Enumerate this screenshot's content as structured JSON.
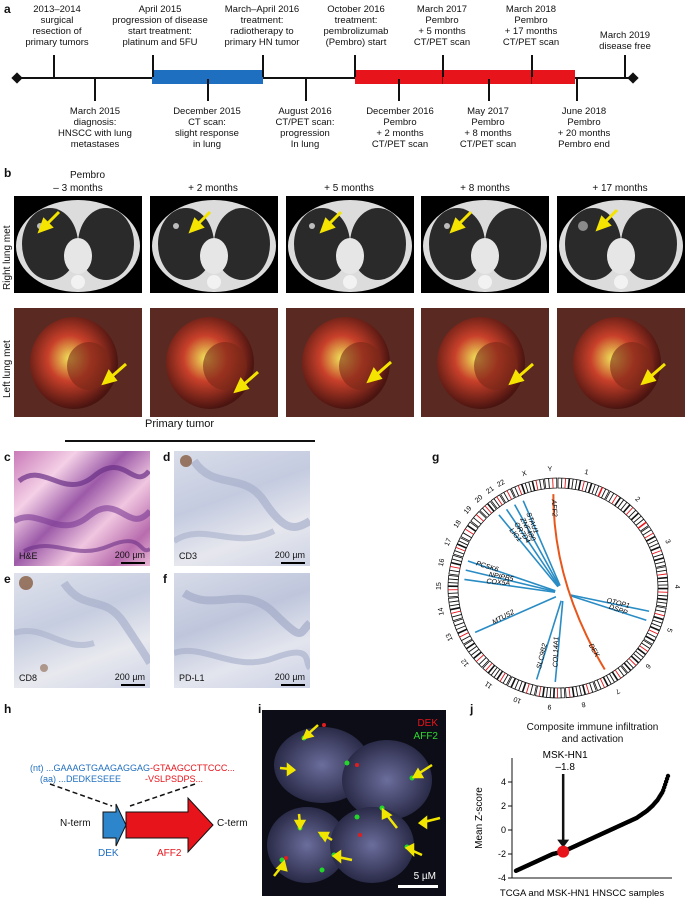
{
  "panels": {
    "a": "a",
    "b": "b",
    "c": "c",
    "d": "d",
    "e": "e",
    "f": "f",
    "g": "g",
    "h": "h",
    "i": "i",
    "j": "j"
  },
  "timeline": {
    "above": [
      "2013–2014\nsurgical\nresection of\nprimary tumors",
      "April 2015\nprogression of disease\nstart treatment:\nplatinum and 5FU",
      "March–April 2016\ntreatment:\nradiotherapy to\nprimary HN tumor",
      "October 2016\ntreatment:\npembrolizumab\n(Pembro) start",
      "March 2017\nPembro\n+ 5 months\nCT/PET scan",
      "March 2018\nPembro\n+ 17 months\nCT/PET scan",
      "March 2019\ndisease free"
    ],
    "below": [
      "March 2015\ndiagnosis:\nHNSCC with lung\nmetastases",
      "December 2015\nCT scan:\nslight response\nin lung",
      "August 2016\nCT/PET scan:\nprogression\nIn lung",
      "December 2016\nPembro\n+ 2 months\nCT/PET scan",
      "May 2017\nPembro\n+ 8 months\nCT/PET scan",
      "June 2018\nPembro\n+ 20 months\nPembro end"
    ],
    "colors": {
      "chemo": "#1f6fc0",
      "pembro": "#e8141b"
    }
  },
  "imaging": {
    "pembro_label": "Pembro",
    "columns": [
      "– 3 months",
      "+ 2 months",
      "+ 5 months",
      "+ 8 months",
      "+ 17 months"
    ],
    "rows": [
      "Right lung met",
      "Left lung met"
    ]
  },
  "histology": {
    "header": "Primary tumor",
    "stains": [
      {
        "panel": "c",
        "label": "H&E",
        "scale": "200 µm"
      },
      {
        "panel": "d",
        "label": "CD3",
        "scale": "200 µm"
      },
      {
        "panel": "e",
        "label": "CD8",
        "scale": "200 µm"
      },
      {
        "panel": "f",
        "label": "PD-L1",
        "scale": "200 µm"
      }
    ]
  },
  "circos": {
    "chromosomes": [
      "1",
      "2",
      "3",
      "4",
      "5",
      "6",
      "7",
      "8",
      "9",
      "10",
      "11",
      "12",
      "13",
      "14",
      "15",
      "16",
      "17",
      "18",
      "19",
      "20",
      "21",
      "22",
      "X",
      "Y"
    ],
    "genes": [
      "AFF2",
      "STAU1",
      "ZNF480",
      "OR7D4",
      "LIG1",
      "PCSK6",
      "NPIPB5",
      "COX5A",
      "MTUS2",
      "SLC9B2",
      "COL14A1",
      "OTOP1",
      "DSPP",
      "DEK"
    ]
  },
  "fusion": {
    "nt": "(nt) ...GAAAGTGAAGAGGAG",
    "aa": "(aa) ...DEDKESEEE",
    "nt2": "-GTAAGCCTTCCC...",
    "aa2": "-VSLPSDPS...",
    "nterm": "N-term",
    "cterm": "C-term",
    "gene1": "DEK",
    "gene2": "AFF2"
  },
  "fish": {
    "label1": "DEK",
    "label2": "AFF2",
    "scale": "5 µM"
  },
  "chart_data": {
    "type": "scatter",
    "title": "Composite immune infiltration\nand activation",
    "xlabel": "TCGA and MSK-HN1 HNSCC samples",
    "ylabel": "Mean Z-score",
    "yticks": [
      -4,
      -2,
      0,
      2,
      4
    ],
    "ylim": [
      -4,
      6
    ],
    "highlight": {
      "name": "MSK-HN1",
      "value": -1.8
    },
    "series": [
      {
        "values": [
          -3.4,
          -3.2,
          -3.0,
          -2.8,
          -2.6,
          -2.4,
          -2.2,
          -2.0,
          -1.9,
          -1.8,
          -1.6,
          -1.4,
          -1.2,
          -1.0,
          -0.8,
          -0.6,
          -0.4,
          -0.2,
          0.0,
          0.2,
          0.4,
          0.6,
          0.8,
          1.0,
          1.3,
          1.6,
          2.0,
          2.5,
          3.2,
          4.5
        ]
      }
    ],
    "colors": {
      "points": "#000000",
      "highlight": "#e8141b"
    }
  }
}
